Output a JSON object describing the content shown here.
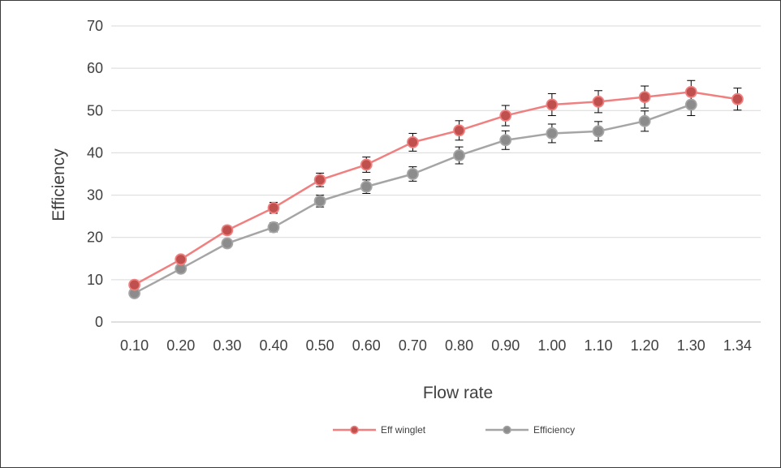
{
  "chart_data": {
    "type": "line",
    "title": "",
    "xlabel": "Flow rate",
    "ylabel": "Efficiency",
    "ylim": [
      0,
      70
    ],
    "yticks": [
      0,
      10,
      20,
      30,
      40,
      50,
      60,
      70
    ],
    "grid": true,
    "legend_position": "bottom",
    "categories": [
      "0.10",
      "0.20",
      "0.30",
      "0.40",
      "0.50",
      "0.60",
      "0.70",
      "0.80",
      "0.90",
      "1.00",
      "1.10",
      "1.20",
      "1.30",
      "1.34"
    ],
    "series": [
      {
        "name": "Eff winglet",
        "color": "#f08080",
        "marker_color": "#c0504d",
        "values": [
          8.8,
          14.8,
          21.7,
          27.0,
          33.6,
          37.2,
          42.5,
          45.3,
          48.8,
          51.4,
          52.1,
          53.2,
          54.4,
          52.7
        ],
        "error": [
          0.5,
          0.6,
          1.0,
          1.3,
          1.6,
          1.8,
          2.1,
          2.3,
          2.4,
          2.6,
          2.6,
          2.6,
          2.7,
          2.6
        ]
      },
      {
        "name": "Efficiency",
        "color": "#a5a5a5",
        "marker_color": "#8c8c8c",
        "values": [
          6.8,
          12.6,
          18.6,
          22.4,
          28.6,
          32.0,
          35.0,
          39.4,
          43.0,
          44.6,
          45.1,
          47.5,
          51.4,
          null
        ],
        "error": [
          0.4,
          0.6,
          0.9,
          1.1,
          1.4,
          1.6,
          1.7,
          2.0,
          2.2,
          2.2,
          2.3,
          2.4,
          2.6,
          null
        ]
      }
    ]
  }
}
